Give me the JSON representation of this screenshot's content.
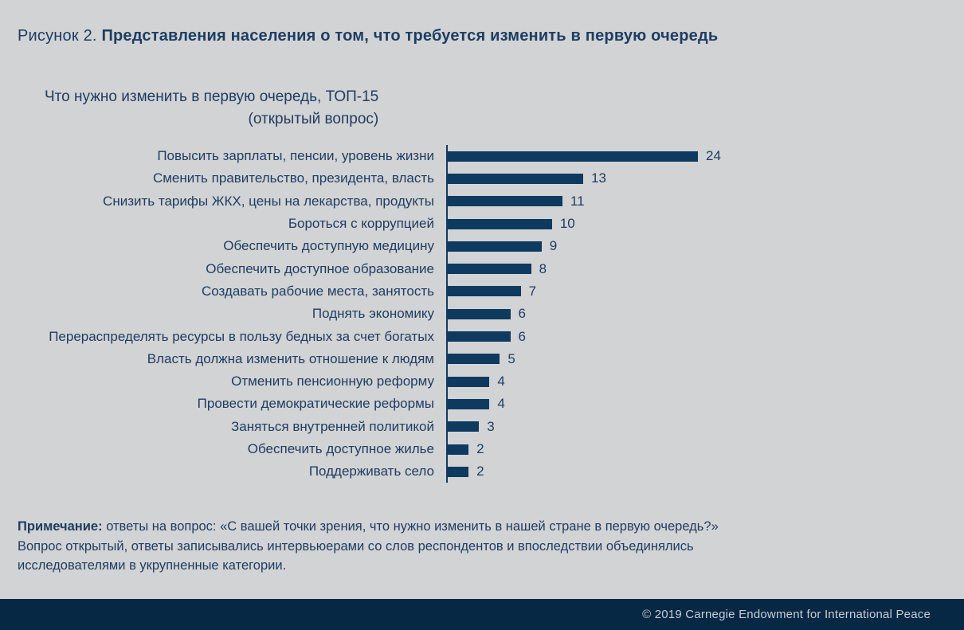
{
  "figure_title": {
    "prefix": "Рисунок 2. ",
    "text": "Представления населения о том, что требуется изменить в первую очередь"
  },
  "chart_data": {
    "type": "bar",
    "orientation": "horizontal",
    "title_line1": "Что нужно изменить в первую очередь, ТОП-15",
    "title_line2": "(открытый вопрос)",
    "categories": [
      "Повысить зарплаты, пенсии, уровень жизни",
      "Сменить правительство, президента, власть",
      "Снизить тарифы ЖКХ, цены на лекарства, продукты",
      "Бороться с коррупцией",
      "Обеспечить доступную медицину",
      "Обеспечить доступное образование",
      "Создавать рабочие места, занятость",
      "Поднять экономику",
      "Перераспределять ресурсы в пользу бедных за счет богатых",
      "Власть должна изменить отношение к людям",
      "Отменить пенсионную реформу",
      "Провести демократические реформы",
      "Заняться внутренней политикой",
      "Обеспечить доступное жилье",
      "Поддерживать село"
    ],
    "values": [
      24,
      13,
      11,
      10,
      9,
      8,
      7,
      6,
      6,
      5,
      4,
      4,
      3,
      2,
      2
    ],
    "xlim": [
      0,
      24
    ],
    "value_labels_shown": true,
    "grid": false,
    "legend": false
  },
  "note": {
    "label": "Примечание:",
    "line1": "ответы на вопрос: «С вашей точки зрения, что нужно изменить в нашей стране в первую очередь?»",
    "line2": "Вопрос открытый, ответы записывались интервьюерами со слов респондентов и впоследствии объединялись",
    "line3": "исследователями в укрупненные категории."
  },
  "footer": {
    "text": "© 2019 Carnegie Endowment for International Peace"
  },
  "colors": {
    "background": "#d2d3d5",
    "text_navy": "#1e3d62",
    "bar": "#0d3a5e",
    "axis": "#123a5e",
    "footer_bg": "#062844",
    "footer_text": "#c7ccd3"
  }
}
